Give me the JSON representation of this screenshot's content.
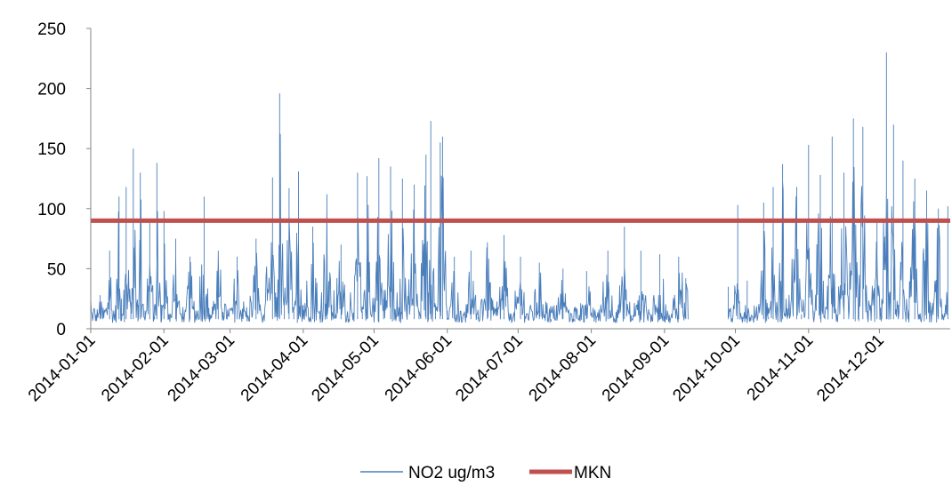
{
  "chart_data": {
    "type": "line",
    "title": "",
    "xlabel": "",
    "ylabel": "",
    "ylim": [
      0,
      250
    ],
    "yticks": [
      "0",
      "50",
      "100",
      "150",
      "200",
      "250"
    ],
    "xlim": [
      "2014-01-01",
      "2014-12-31"
    ],
    "xticks": [
      "2014-01-01",
      "2014-02-01",
      "2014-03-01",
      "2014-04-01",
      "2014-05-01",
      "2014-06-01",
      "2014-07-01",
      "2014-08-01",
      "2014-09-01",
      "2014-10-01",
      "2014-11-01",
      "2014-12-01"
    ],
    "grid": false,
    "legend_position": "bottom",
    "series": [
      {
        "name": "NO2 ug/m3",
        "color": "#4a7ebb",
        "kind": "hourly line (dense), approximate envelope",
        "gap": [
          "2014-09-11",
          "2014-09-28"
        ],
        "points": [
          [
            "2014-01-01",
            35
          ],
          [
            "2014-01-03",
            10
          ],
          [
            "2014-01-05",
            28
          ],
          [
            "2014-01-07",
            8
          ],
          [
            "2014-01-09",
            65
          ],
          [
            "2014-01-11",
            12
          ],
          [
            "2014-01-13",
            110
          ],
          [
            "2014-01-14",
            25
          ],
          [
            "2014-01-16",
            118
          ],
          [
            "2014-01-18",
            22
          ],
          [
            "2014-01-19",
            150
          ],
          [
            "2014-01-21",
            20
          ],
          [
            "2014-01-22",
            130
          ],
          [
            "2014-01-24",
            15
          ],
          [
            "2014-01-26",
            90
          ],
          [
            "2014-01-28",
            10
          ],
          [
            "2014-01-29",
            138
          ],
          [
            "2014-01-31",
            20
          ],
          [
            "2014-02-01",
            98
          ],
          [
            "2014-02-03",
            12
          ],
          [
            "2014-02-06",
            75
          ],
          [
            "2014-02-09",
            10
          ],
          [
            "2014-02-12",
            60
          ],
          [
            "2014-02-15",
            8
          ],
          [
            "2014-02-18",
            110
          ],
          [
            "2014-02-20",
            12
          ],
          [
            "2014-02-24",
            65
          ],
          [
            "2014-02-28",
            8
          ],
          [
            "2014-03-04",
            60
          ],
          [
            "2014-03-08",
            8
          ],
          [
            "2014-03-12",
            75
          ],
          [
            "2014-03-15",
            10
          ],
          [
            "2014-03-19",
            126
          ],
          [
            "2014-03-21",
            20
          ],
          [
            "2014-03-22",
            196
          ],
          [
            "2014-03-24",
            25
          ],
          [
            "2014-03-26",
            117
          ],
          [
            "2014-03-28",
            18
          ],
          [
            "2014-03-30",
            131
          ],
          [
            "2014-04-01",
            20
          ],
          [
            "2014-04-05",
            85
          ],
          [
            "2014-04-08",
            15
          ],
          [
            "2014-04-11",
            112
          ],
          [
            "2014-04-13",
            20
          ],
          [
            "2014-04-17",
            70
          ],
          [
            "2014-04-20",
            8
          ],
          [
            "2014-04-24",
            130
          ],
          [
            "2014-04-26",
            15
          ],
          [
            "2014-04-28",
            127
          ],
          [
            "2014-05-01",
            20
          ],
          [
            "2014-05-03",
            142
          ],
          [
            "2014-05-05",
            25
          ],
          [
            "2014-05-08",
            135
          ],
          [
            "2014-05-10",
            15
          ],
          [
            "2014-05-13",
            125
          ],
          [
            "2014-05-15",
            20
          ],
          [
            "2014-05-18",
            120
          ],
          [
            "2014-05-20",
            15
          ],
          [
            "2014-05-23",
            145
          ],
          [
            "2014-05-24",
            30
          ],
          [
            "2014-05-25",
            173
          ],
          [
            "2014-05-27",
            20
          ],
          [
            "2014-05-29",
            155
          ],
          [
            "2014-05-30",
            160
          ],
          [
            "2014-06-01",
            15
          ],
          [
            "2014-06-04",
            60
          ],
          [
            "2014-06-07",
            10
          ],
          [
            "2014-06-11",
            65
          ],
          [
            "2014-06-14",
            10
          ],
          [
            "2014-06-18",
            72
          ],
          [
            "2014-06-21",
            8
          ],
          [
            "2014-06-25",
            78
          ],
          [
            "2014-06-28",
            10
          ],
          [
            "2014-07-02",
            60
          ],
          [
            "2014-07-06",
            8
          ],
          [
            "2014-07-10",
            55
          ],
          [
            "2014-07-15",
            6
          ],
          [
            "2014-07-20",
            50
          ],
          [
            "2014-07-25",
            6
          ],
          [
            "2014-07-30",
            48
          ],
          [
            "2014-08-03",
            5
          ],
          [
            "2014-08-08",
            65
          ],
          [
            "2014-08-11",
            8
          ],
          [
            "2014-08-15",
            85
          ],
          [
            "2014-08-18",
            6
          ],
          [
            "2014-08-22",
            65
          ],
          [
            "2014-08-26",
            8
          ],
          [
            "2014-08-30",
            62
          ],
          [
            "2014-09-03",
            8
          ],
          [
            "2014-09-07",
            60
          ],
          [
            "2014-09-10",
            42
          ],
          [
            "2014-09-28",
            35
          ],
          [
            "2014-09-30",
            8
          ],
          [
            "2014-10-02",
            103
          ],
          [
            "2014-10-04",
            10
          ],
          [
            "2014-10-06",
            40
          ],
          [
            "2014-10-09",
            8
          ],
          [
            "2014-10-13",
            105
          ],
          [
            "2014-10-15",
            10
          ],
          [
            "2014-10-17",
            118
          ],
          [
            "2014-10-19",
            15
          ],
          [
            "2014-10-21",
            137
          ],
          [
            "2014-10-23",
            10
          ],
          [
            "2014-10-27",
            118
          ],
          [
            "2014-10-29",
            12
          ],
          [
            "2014-11-01",
            153
          ],
          [
            "2014-11-03",
            15
          ],
          [
            "2014-11-06",
            128
          ],
          [
            "2014-11-08",
            10
          ],
          [
            "2014-11-11",
            160
          ],
          [
            "2014-11-13",
            12
          ],
          [
            "2014-11-16",
            130
          ],
          [
            "2014-11-18",
            15
          ],
          [
            "2014-11-20",
            175
          ],
          [
            "2014-11-22",
            20
          ],
          [
            "2014-11-24",
            168
          ],
          [
            "2014-11-26",
            15
          ],
          [
            "2014-11-30",
            90
          ],
          [
            "2014-12-02",
            25
          ],
          [
            "2014-12-04",
            230
          ],
          [
            "2014-12-05",
            30
          ],
          [
            "2014-12-07",
            170
          ],
          [
            "2014-12-09",
            20
          ],
          [
            "2014-12-11",
            140
          ],
          [
            "2014-12-13",
            15
          ],
          [
            "2014-12-16",
            125
          ],
          [
            "2014-12-18",
            12
          ],
          [
            "2014-12-21",
            115
          ],
          [
            "2014-12-23",
            15
          ],
          [
            "2014-12-26",
            100
          ],
          [
            "2014-12-28",
            10
          ],
          [
            "2014-12-30",
            102
          ]
        ]
      },
      {
        "name": "MKN",
        "color": "#c0504d",
        "kind": "constant",
        "value": 90
      }
    ]
  }
}
